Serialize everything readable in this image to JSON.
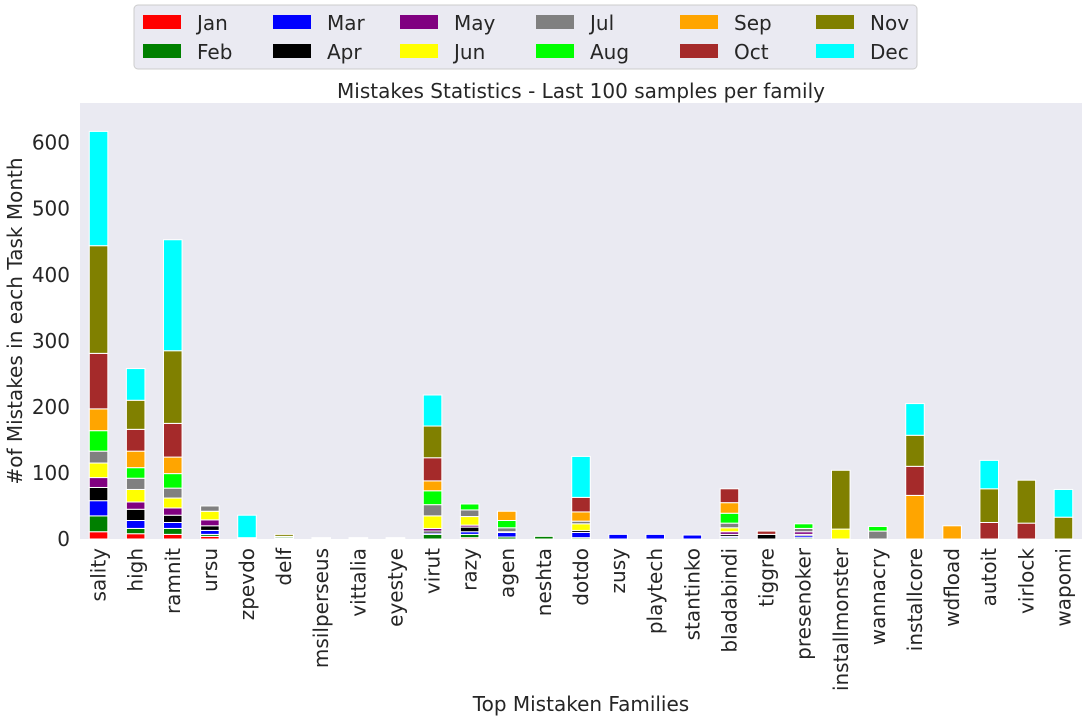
{
  "chart_data": {
    "type": "bar",
    "stacked": true,
    "title": "Mistakes Statistics - Last 100 samples per family",
    "xlabel": "Top Mistaken Families",
    "ylabel": "#of Mistakes in each Task Month",
    "ylim": [
      0,
      660
    ],
    "yticks": [
      0,
      100,
      200,
      300,
      400,
      500,
      600
    ],
    "grid": false,
    "legend_position": "top",
    "categories": [
      "sality",
      "high",
      "ramnit",
      "ursu",
      "zpevdo",
      "delf",
      "msilperseus",
      "vittalia",
      "eyestye",
      "virut",
      "razy",
      "agen",
      "neshta",
      "dotdo",
      "zusy",
      "playtech",
      "stantinko",
      "bladabindi",
      "tiggre",
      "presenoker",
      "installmonster",
      "wannacry",
      "installcore",
      "wdfload",
      "autoit",
      "virlock",
      "wapomi"
    ],
    "series": [
      {
        "name": "Jan",
        "color": "#ff0000",
        "values": [
          11,
          8,
          7,
          4,
          0,
          1,
          1,
          1,
          1,
          0,
          2,
          0,
          0,
          0,
          0,
          0,
          0,
          0,
          0,
          0,
          0,
          0,
          0,
          0,
          0,
          0,
          0
        ]
      },
      {
        "name": "Feb",
        "color": "#008000",
        "values": [
          24,
          8,
          9,
          3,
          1,
          2,
          0,
          0,
          0,
          7,
          5,
          3,
          4,
          2,
          0,
          0,
          0,
          2,
          0,
          2,
          0,
          0,
          0,
          0,
          0,
          0,
          0
        ]
      },
      {
        "name": "Mar",
        "color": "#0000ff",
        "values": [
          23,
          12,
          9,
          6,
          0,
          0,
          0,
          0,
          0,
          2,
          4,
          7,
          0,
          8,
          7,
          7,
          6,
          2,
          0,
          3,
          0,
          0,
          0,
          0,
          0,
          0,
          0
        ]
      },
      {
        "name": "Apr",
        "color": "#000000",
        "values": [
          20,
          17,
          11,
          7,
          0,
          0,
          0,
          0,
          0,
          3,
          7,
          1,
          0,
          3,
          0,
          0,
          0,
          3,
          7,
          2,
          0,
          0,
          0,
          0,
          0,
          0,
          0
        ]
      },
      {
        "name": "May",
        "color": "#800080",
        "values": [
          15,
          11,
          11,
          9,
          0,
          0,
          0,
          0,
          0,
          4,
          3,
          0,
          0,
          0,
          0,
          0,
          0,
          4,
          0,
          4,
          0,
          0,
          0,
          0,
          0,
          0,
          0
        ]
      },
      {
        "name": "Jun",
        "color": "#ffff00",
        "values": [
          22,
          19,
          15,
          13,
          0,
          0,
          0,
          0,
          0,
          19,
          13,
          0,
          0,
          10,
          0,
          0,
          0,
          6,
          0,
          0,
          15,
          0,
          0,
          0,
          0,
          0,
          0
        ]
      },
      {
        "name": "Jul",
        "color": "#808080",
        "values": [
          18,
          17,
          15,
          8,
          0,
          0,
          0,
          0,
          0,
          17,
          10,
          6,
          0,
          4,
          0,
          0,
          0,
          7,
          0,
          5,
          0,
          12,
          0,
          0,
          0,
          0,
          0
        ]
      },
      {
        "name": "Aug",
        "color": "#00ff00",
        "values": [
          31,
          16,
          22,
          0,
          0,
          0,
          0,
          0,
          0,
          21,
          9,
          11,
          0,
          0,
          0,
          0,
          0,
          15,
          0,
          7,
          0,
          7,
          0,
          0,
          0,
          0,
          0
        ]
      },
      {
        "name": "Sep",
        "color": "#ffa500",
        "values": [
          33,
          25,
          25,
          0,
          0,
          0,
          0,
          0,
          0,
          15,
          0,
          14,
          0,
          14,
          0,
          0,
          0,
          16,
          0,
          0,
          0,
          0,
          66,
          20,
          0,
          0,
          0
        ]
      },
      {
        "name": "Oct",
        "color": "#a52a2a",
        "values": [
          84,
          33,
          51,
          0,
          0,
          1,
          1,
          1,
          1,
          35,
          0,
          0,
          0,
          22,
          0,
          0,
          0,
          21,
          5,
          0,
          0,
          0,
          44,
          0,
          25,
          24,
          0
        ]
      },
      {
        "name": "Nov",
        "color": "#808000",
        "values": [
          163,
          44,
          110,
          0,
          1,
          3,
          0,
          0,
          0,
          48,
          0,
          0,
          0,
          0,
          0,
          0,
          0,
          0,
          0,
          0,
          89,
          0,
          47,
          0,
          51,
          65,
          33
        ]
      },
      {
        "name": "Dec",
        "color": "#00ffff",
        "values": [
          173,
          48,
          168,
          0,
          34,
          0,
          0,
          0,
          0,
          47,
          0,
          0,
          0,
          62,
          0,
          0,
          0,
          0,
          0,
          0,
          0,
          0,
          48,
          0,
          43,
          0,
          42
        ]
      }
    ]
  }
}
